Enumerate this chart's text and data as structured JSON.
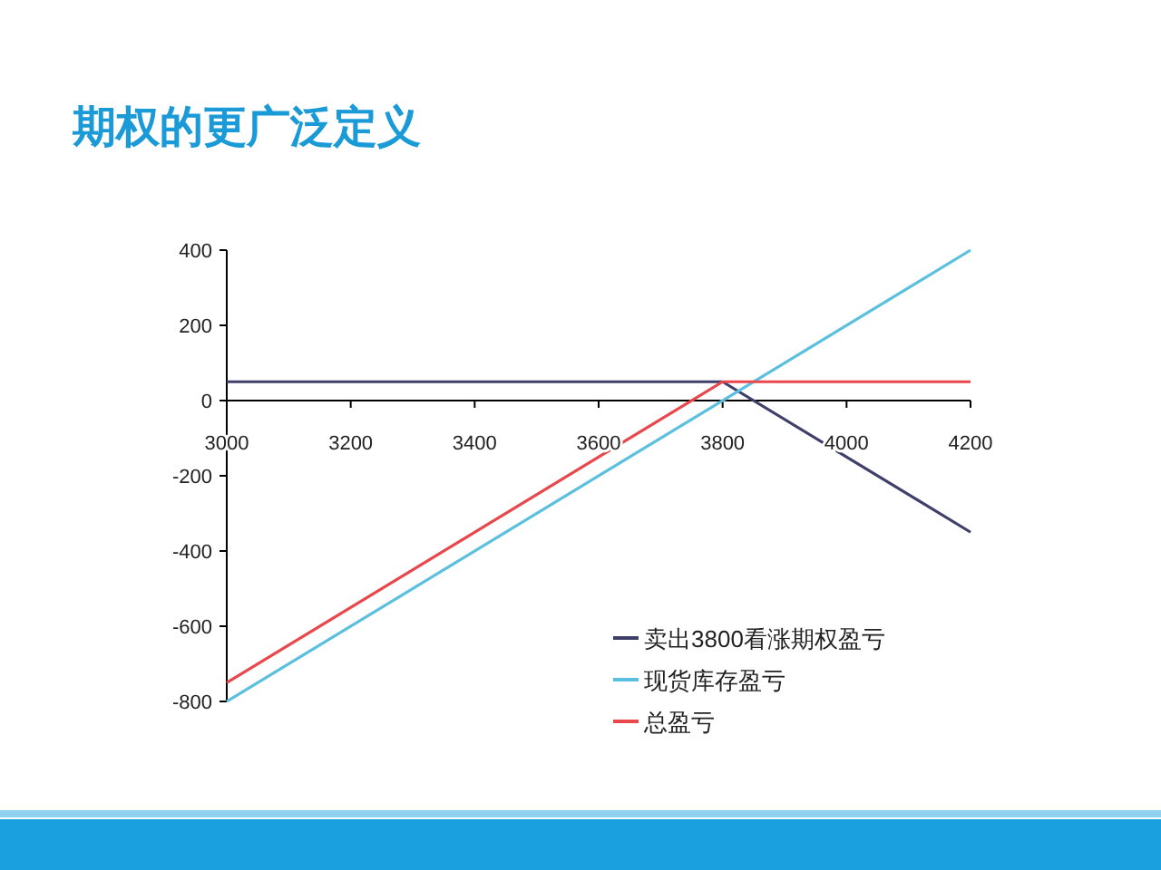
{
  "chart_data": {
    "type": "line",
    "title": "期权的更广泛定义",
    "series": [
      {
        "name": "卖出3800看涨期权盈亏",
        "color": "#3f3f6b",
        "x": [
          3000,
          3800,
          4200
        ],
        "values": [
          50,
          50,
          -350
        ]
      },
      {
        "name": "现货库存盈亏",
        "color": "#5bc0de",
        "x": [
          3000,
          4200
        ],
        "values": [
          -800,
          400
        ]
      },
      {
        "name": "总盈亏",
        "color": "#e8474c",
        "x": [
          3000,
          3800,
          4200
        ],
        "values": [
          -750,
          50,
          50
        ]
      }
    ],
    "xlim": [
      3000,
      4200
    ],
    "xticks": [
      3000,
      3200,
      3400,
      3600,
      3800,
      4000,
      4200
    ],
    "ylim": [
      -800,
      400
    ],
    "yticks": [
      -800,
      -600,
      -400,
      -200,
      0,
      200,
      400
    ],
    "grid": false,
    "legend": "bottom right",
    "marker": "none",
    "line_style": "solid"
  }
}
